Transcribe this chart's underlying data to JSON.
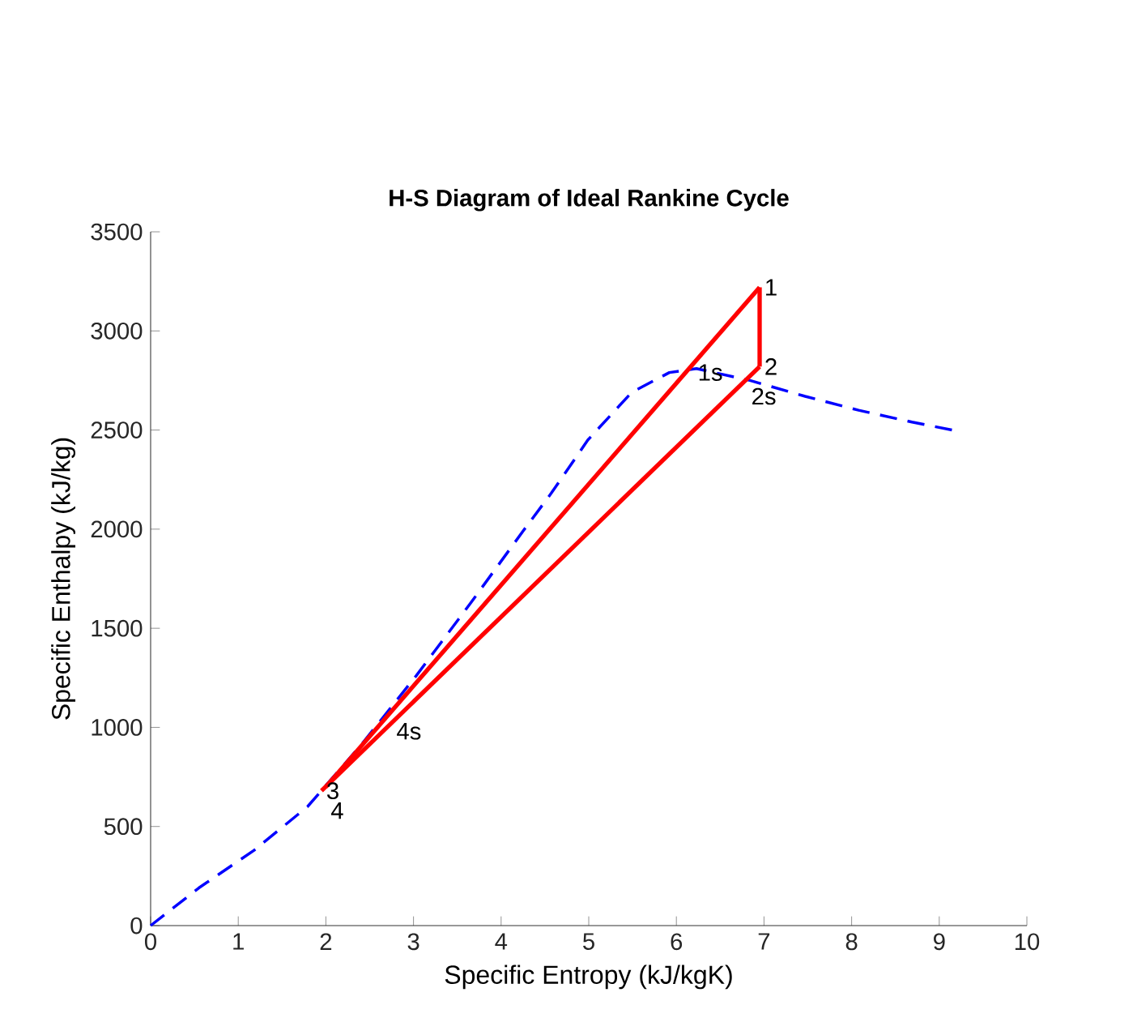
{
  "chart_data": {
    "type": "line",
    "title": "H-S Diagram of Ideal Rankine Cycle",
    "xlabel": "Specific Entropy (kJ/kgK)",
    "ylabel": "Specific Enthalpy (kJ/kg)",
    "xlim": [
      0,
      10
    ],
    "ylim": [
      0,
      3500
    ],
    "xticks": [
      0,
      1,
      2,
      3,
      4,
      5,
      6,
      7,
      8,
      9,
      10
    ],
    "yticks": [
      0,
      500,
      1000,
      1500,
      2000,
      2500,
      3000,
      3500
    ],
    "grid": false,
    "marker": "none",
    "series": [
      {
        "color": "#0000ff",
        "line_style": "dashed",
        "x": [
          0,
          0.55,
          1.18,
          1.79,
          2.4,
          3.03,
          3.64,
          4.25,
          4.57,
          4.99,
          5.49,
          5.92,
          6.23,
          6.84,
          7.47,
          8.08,
          8.69,
          9.15
        ],
        "values": [
          0,
          190,
          380,
          600,
          910,
          1260,
          1620,
          1990,
          2180,
          2450,
          2690,
          2790,
          2810,
          2750,
          2670,
          2600,
          2540,
          2500
        ]
      },
      {
        "color": "#ff0000",
        "line_style": "solid",
        "x": [
          1.95,
          6.95
        ],
        "values": [
          680,
          2820
        ]
      },
      {
        "color": "#ff0000",
        "line_style": "solid",
        "x": [
          2.0,
          6.95
        ],
        "values": [
          700,
          3220
        ]
      },
      {
        "color": "#ff0000",
        "line_style": "solid",
        "x": [
          6.95,
          6.95
        ],
        "values": [
          2820,
          3220
        ]
      }
    ],
    "annotations": [
      {
        "text": "1",
        "x": 6.95,
        "y": 3220
      },
      {
        "text": "2",
        "x": 6.95,
        "y": 2820
      },
      {
        "text": "2s",
        "x": 6.8,
        "y": 2790
      },
      {
        "text": "1s",
        "x": 6.19,
        "y": 2790
      },
      {
        "text": "3",
        "x": 1.95,
        "y": 680
      },
      {
        "text": "4",
        "x": 2.0,
        "y": 700
      },
      {
        "text": "4s",
        "x": 2.75,
        "y": 980
      }
    ]
  }
}
